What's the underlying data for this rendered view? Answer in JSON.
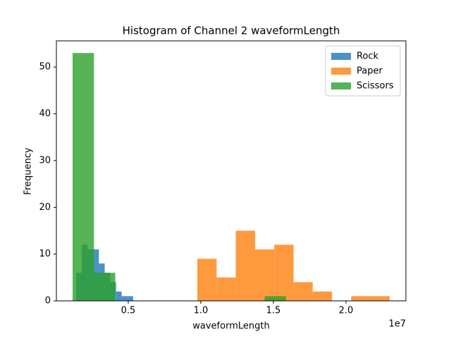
{
  "chart_data": {
    "type": "histogram",
    "title": "Histogram of Channel 2 waveformLength",
    "xlabel": "waveformLength",
    "ylabel": "Frequency",
    "x_offset_label": "1e7",
    "xlim": [
      0.005,
      2.413
    ],
    "ylim": [
      0,
      55.6
    ],
    "xticks": [
      0.5,
      {
        "value": 1.0,
        "label": "1.0"
      },
      1.5,
      {
        "value": 2.0,
        "label": "2.0"
      }
    ],
    "yticks": [
      0,
      10,
      20,
      30,
      40,
      50
    ],
    "legend": "upper right",
    "opacity": 0.8,
    "series": [
      {
        "name": "Rock",
        "color": "#1f77b4",
        "bins": [
          0.141,
          0.18,
          0.22,
          0.259,
          0.298,
          0.338,
          0.377,
          0.416,
          0.455,
          0.495,
          0.534
        ],
        "values": [
          6,
          12,
          11,
          11,
          8,
          6,
          4,
          2,
          1,
          1
        ]
      },
      {
        "name": "Paper",
        "color": "#ff7f0e",
        "bins": [
          0.976,
          1.109,
          1.241,
          1.374,
          1.506,
          1.639,
          1.771,
          1.904,
          2.036,
          2.169,
          2.301
        ],
        "values": [
          9,
          5,
          15,
          11,
          12,
          4,
          2,
          0,
          1,
          1
        ]
      },
      {
        "name": "Scissors",
        "color": "#2ca02c",
        "bins": [
          0.117,
          0.264,
          0.411,
          0.558,
          0.705,
          0.852,
          0.999,
          1.146,
          1.293,
          1.44,
          1.587
        ],
        "values": [
          53,
          6,
          0,
          0,
          0,
          0,
          0,
          0,
          0,
          1
        ]
      }
    ]
  }
}
